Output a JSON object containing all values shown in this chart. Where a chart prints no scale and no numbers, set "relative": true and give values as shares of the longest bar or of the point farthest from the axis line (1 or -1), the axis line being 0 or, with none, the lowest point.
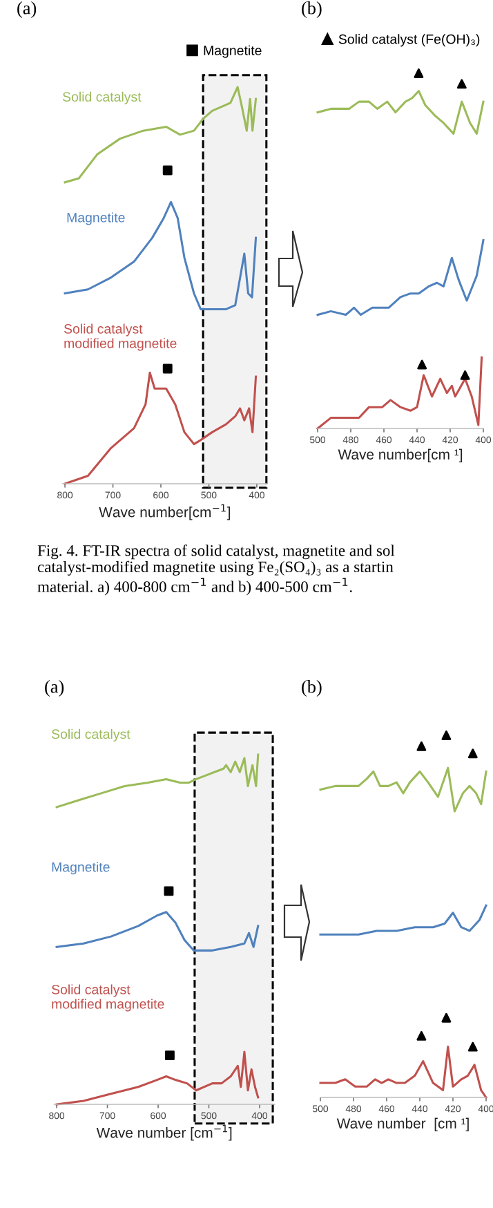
{
  "chart_data": [
    {
      "type": "line",
      "title": "(a)",
      "xlabel": "Wave number[cm$^{−1}$]",
      "relative": true,
      "tick_labels": "x",
      "legend": "top right",
      "xlim": [
        805,
        378
      ],
      "xticks": [
        800,
        700,
        600,
        500,
        400
      ],
      "bands": [
        {
          "axis": "x",
          "from": 512,
          "to": 380,
          "color": "#000000"
        }
      ],
      "annotations": [
        "Fig. 4. FT-IR spectra of solid catalyst, magnetite and sol\ncatalyst-modified magnetite using Fe₂(SO₄)₃ as a startin\nmaterial. a) 400-800 cm$^{−1}$ and b) 400-500 cm$^{−1}$."
      ],
      "series": [
        {
          "name": "Solid catalyst",
          "color": "#9bbb59",
          "x": [
            800,
            771,
            733,
            685,
            637,
            589,
            560,
            531,
            512,
            493,
            474,
            455,
            440,
            431,
            421,
            414,
            409,
            402
          ],
          "values": [
            0.76,
            0.77,
            0.83,
            0.87,
            0.89,
            0.9,
            0.88,
            0.89,
            0.92,
            0.94,
            0.95,
            0.96,
            1.0,
            0.95,
            0.89,
            0.97,
            0.89,
            0.97
          ]
        },
        {
          "name": "Magnetite",
          "color": "#4f81bd",
          "x": [
            800,
            752,
            704,
            656,
            618,
            594,
            579,
            565,
            551,
            531,
            517,
            493,
            464,
            445,
            426,
            418,
            410,
            402
          ],
          "values": [
            0.48,
            0.49,
            0.52,
            0.56,
            0.62,
            0.67,
            0.71,
            0.67,
            0.57,
            0.48,
            0.44,
            0.44,
            0.44,
            0.45,
            0.58,
            0.48,
            0.47,
            0.62
          ]
        },
        {
          "name": "Solid catalyst\nmodified magnetite",
          "color": "#c0504d",
          "x": [
            800,
            752,
            704,
            656,
            632,
            623,
            613,
            589,
            570,
            551,
            531,
            517,
            493,
            464,
            445,
            435,
            426,
            416,
            409,
            402
          ],
          "values": [
            0,
            0.02,
            0.09,
            0.14,
            0.2,
            0.28,
            0.24,
            0.24,
            0.2,
            0.13,
            0.1,
            0.11,
            0.13,
            0.15,
            0.17,
            0.19,
            0.16,
            0.19,
            0.13,
            0.27
          ]
        },
        {
          "name": "Magnetite",
          "type": "scatter",
          "marker": "square",
          "color": "#000000",
          "x": [
            586,
            586
          ],
          "values": [
            0.79,
            0.29
          ]
        }
      ]
    },
    {
      "type": "line",
      "title": "(b)",
      "xlabel": "Wave number[cm ¹]",
      "relative": true,
      "tick_labels": "x",
      "legend": "top",
      "xlim": [
        500,
        400
      ],
      "xticks": [
        500,
        480,
        460,
        440,
        420,
        400
      ],
      "series": [
        {
          "color": "#9bbb59",
          "x": [
            500,
            492,
            486,
            481,
            475,
            469,
            464,
            458,
            453,
            447,
            443,
            439,
            435,
            429,
            424,
            418,
            413,
            408,
            404,
            400
          ],
          "values": [
            0.89,
            0.9,
            0.9,
            0.9,
            0.92,
            0.92,
            0.9,
            0.92,
            0.89,
            0.92,
            0.93,
            0.95,
            0.91,
            0.88,
            0.86,
            0.83,
            0.92,
            0.86,
            0.83,
            0.92
          ]
        },
        {
          "color": "#4f81bd",
          "x": [
            500,
            492,
            483,
            478,
            474,
            467,
            457,
            450,
            444,
            439,
            433,
            428,
            424,
            419,
            415,
            410,
            404,
            400
          ],
          "values": [
            0.32,
            0.33,
            0.32,
            0.34,
            0.32,
            0.34,
            0.34,
            0.37,
            0.38,
            0.38,
            0.4,
            0.41,
            0.4,
            0.48,
            0.42,
            0.36,
            0.43,
            0.53
          ]
        },
        {
          "color": "#c0504d",
          "x": [
            500,
            492,
            483,
            475,
            469,
            461,
            456,
            450,
            444,
            440,
            436,
            431,
            426,
            422,
            419,
            417,
            411,
            407,
            403,
            401
          ],
          "values": [
            0,
            0.03,
            0.03,
            0.03,
            0.06,
            0.06,
            0.08,
            0.06,
            0.05,
            0.06,
            0.15,
            0.09,
            0.14,
            0.1,
            0.12,
            0.09,
            0.14,
            0.09,
            0.01,
            0.2
          ]
        },
        {
          "name": "Solid catalyst (Fe(OH)₃)",
          "type": "scatter",
          "marker": "triangle",
          "color": "#000000",
          "x": [
            439,
            413,
            437,
            411
          ],
          "values": [
            1.0,
            0.97,
            0.18,
            0.15
          ]
        }
      ]
    },
    {
      "type": "line",
      "title": "(a)",
      "xlabel": "Wave number [cm$^{−1}$]",
      "relative": true,
      "tick_labels": "x",
      "xlim": [
        805,
        370
      ],
      "xticks": [
        800,
        700,
        600,
        500,
        400
      ],
      "bands": [
        {
          "axis": "x",
          "from": 528,
          "to": 374,
          "color": "#000000"
        }
      ],
      "series": [
        {
          "name": "Solid catalyst",
          "color": "#9bbb59",
          "x": [
            800,
            756,
            711,
            666,
            620,
            584,
            557,
            539,
            525,
            507,
            489,
            471,
            466,
            457,
            448,
            439,
            430,
            423,
            414,
            407,
            403
          ],
          "values": [
            0.85,
            0.87,
            0.89,
            0.91,
            0.92,
            0.93,
            0.92,
            0.92,
            0.93,
            0.94,
            0.95,
            0.96,
            0.97,
            0.95,
            0.98,
            0.95,
            0.99,
            0.91,
            0.97,
            0.91,
            1.0
          ]
        },
        {
          "name": "Magnetite",
          "color": "#4f81bd",
          "x": [
            800,
            747,
            693,
            639,
            602,
            584,
            566,
            548,
            530,
            493,
            457,
            430,
            421,
            412,
            403
          ],
          "values": [
            0.45,
            0.46,
            0.48,
            0.51,
            0.54,
            0.55,
            0.52,
            0.47,
            0.44,
            0.44,
            0.45,
            0.46,
            0.49,
            0.45,
            0.51
          ]
        },
        {
          "name": "Solid catalyst\nmodified magnetite",
          "color": "#c0504d",
          "x": [
            800,
            747,
            693,
            639,
            602,
            584,
            566,
            543,
            525,
            493,
            475,
            457,
            443,
            437,
            430,
            423,
            416,
            409,
            403
          ],
          "values": [
            0,
            0.01,
            0.03,
            0.05,
            0.07,
            0.08,
            0.07,
            0.06,
            0.04,
            0.06,
            0.06,
            0.08,
            0.11,
            0.05,
            0.15,
            0.04,
            0.1,
            0.05,
            0.02
          ]
        },
        {
          "type": "scatter",
          "marker": "square",
          "color": "#000000",
          "x": [
            579,
            577
          ],
          "values": [
            0.61,
            0.14
          ]
        }
      ]
    },
    {
      "type": "line",
      "title": "(b)",
      "xlabel": "Wave number  [cm ¹]",
      "relative": true,
      "tick_labels": "x",
      "xlim": [
        500,
        400
      ],
      "xticks": [
        500,
        480,
        460,
        440,
        420,
        400
      ],
      "series": [
        {
          "color": "#9bbb59",
          "x": [
            500,
            491,
            485,
            481,
            477,
            472,
            468,
            464,
            459,
            454,
            450,
            446,
            440,
            435,
            429,
            423,
            419,
            414,
            410,
            406,
            403,
            400
          ],
          "values": [
            0.85,
            0.86,
            0.86,
            0.86,
            0.86,
            0.88,
            0.9,
            0.86,
            0.86,
            0.87,
            0.84,
            0.87,
            0.9,
            0.87,
            0.83,
            0.91,
            0.79,
            0.84,
            0.86,
            0.84,
            0.81,
            0.9
          ]
        },
        {
          "color": "#4f81bd",
          "x": [
            500,
            488,
            477,
            466,
            454,
            443,
            432,
            425,
            420,
            415,
            410,
            404,
            400
          ],
          "values": [
            0.45,
            0.45,
            0.45,
            0.46,
            0.46,
            0.47,
            0.47,
            0.48,
            0.51,
            0.47,
            0.46,
            0.49,
            0.53
          ]
        },
        {
          "color": "#c0504d",
          "x": [
            500,
            491,
            485,
            479,
            472,
            467,
            463,
            459,
            454,
            449,
            443,
            438,
            432,
            426,
            423,
            420,
            415,
            411,
            407,
            403,
            400
          ],
          "values": [
            0.04,
            0.04,
            0.05,
            0.03,
            0.03,
            0.05,
            0.04,
            0.05,
            0.04,
            0.04,
            0.06,
            0.1,
            0.04,
            0.02,
            0.14,
            0.03,
            0.05,
            0.06,
            0.09,
            0.02,
            0
          ]
        },
        {
          "type": "scatter",
          "marker": "triangle",
          "color": "#000000",
          "x": [
            439,
            424,
            408,
            439,
            424,
            408
          ],
          "values": [
            0.97,
            1.0,
            0.95,
            0.17,
            0.22,
            0.14
          ]
        }
      ]
    }
  ]
}
